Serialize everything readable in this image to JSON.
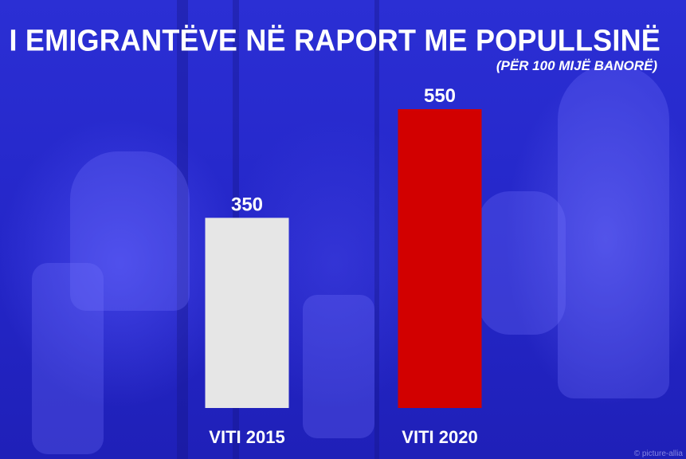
{
  "title": "NUMRI I EMIGRANTËVE NË RAPORT ME POPULLSINË",
  "subtitle": "(PËR 100 MIJË BANORË)",
  "credit": "© picture-allia",
  "colors": {
    "background": "#2426c8",
    "text": "#ffffff"
  },
  "chart_data": {
    "type": "bar",
    "categories": [
      "VITI 2015",
      "VITI 2020"
    ],
    "values": [
      350,
      550
    ],
    "bar_colors": [
      "#e6e6e6",
      "#d20000"
    ],
    "ylim": [
      0,
      600
    ],
    "grid": false,
    "axes_visible": false
  }
}
